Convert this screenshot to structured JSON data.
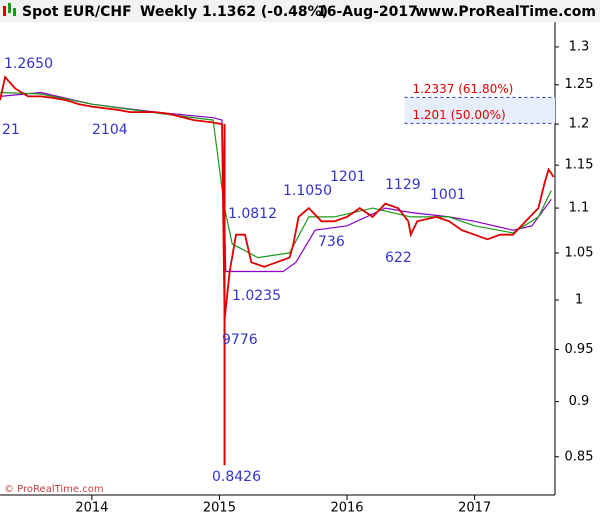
{
  "chart_data": {
    "type": "line",
    "title": "Spot EUR/CHF",
    "period": "Weekly",
    "last": "1.1362 (-0.48%)",
    "date": "16-Aug-2017",
    "site": "www.ProRealTime.com",
    "copyright": "© ProRealTime.com",
    "log_scale": true,
    "xlim": [
      2013.28,
      2017.63
    ],
    "xticks": [
      2014,
      2015,
      2016,
      2017
    ],
    "ylim": [
      0.817,
      1.334
    ],
    "yticks": [
      0.85,
      0.9,
      0.95,
      1,
      1.05,
      1.1,
      1.15,
      1.2,
      1.25,
      1.3
    ],
    "price": {
      "color": "#e00000",
      "x": [
        2013.28,
        2013.32,
        2013.4,
        2013.5,
        2013.6,
        2013.7,
        2013.8,
        2013.9,
        2014.0,
        2014.2,
        2014.3,
        2014.5,
        2014.6,
        2014.8,
        2014.95,
        2015.02,
        2015.04,
        2015.08,
        2015.13,
        2015.2,
        2015.25,
        2015.35,
        2015.45,
        2015.55,
        2015.58,
        2015.62,
        2015.7,
        2015.8,
        2015.9,
        2016.0,
        2016.1,
        2016.2,
        2016.3,
        2016.4,
        2016.48,
        2016.5,
        2016.55,
        2016.7,
        2016.8,
        2016.9,
        2017.0,
        2017.1,
        2017.2,
        2017.3,
        2017.4,
        2017.5,
        2017.55,
        2017.58,
        2017.62
      ],
      "values": [
        1.23,
        1.26,
        1.245,
        1.235,
        1.235,
        1.233,
        1.23,
        1.225,
        1.222,
        1.218,
        1.215,
        1.215,
        1.213,
        1.205,
        1.202,
        1.2,
        0.98,
        1.03,
        1.07,
        1.07,
        1.04,
        1.035,
        1.04,
        1.045,
        1.06,
        1.09,
        1.1,
        1.085,
        1.085,
        1.09,
        1.1,
        1.09,
        1.105,
        1.1,
        1.085,
        1.07,
        1.085,
        1.09,
        1.085,
        1.075,
        1.07,
        1.065,
        1.07,
        1.07,
        1.085,
        1.1,
        1.13,
        1.145,
        1.136
      ]
    },
    "spike": {
      "color": "#e00000",
      "x": 2015.04,
      "high": 1.2,
      "low": 0.8426
    },
    "averages": [
      {
        "color": "#8b00c8",
        "x": [
          2013.28,
          2013.6,
          2014.0,
          2014.5,
          2014.95,
          2015.02,
          2015.05,
          2015.5,
          2015.6,
          2015.75,
          2016.0,
          2016.3,
          2016.5,
          2016.8,
          2017.0,
          2017.3,
          2017.45,
          2017.6
        ],
        "values": [
          1.235,
          1.24,
          1.225,
          1.215,
          1.208,
          1.205,
          1.03,
          1.03,
          1.04,
          1.075,
          1.08,
          1.1,
          1.095,
          1.09,
          1.085,
          1.075,
          1.08,
          1.11
        ]
      },
      {
        "color": "#1a9a1a",
        "x": [
          2013.28,
          2013.6,
          2014.0,
          2014.5,
          2014.95,
          2015.04,
          2015.1,
          2015.3,
          2015.55,
          2015.7,
          2015.9,
          2016.2,
          2016.5,
          2016.8,
          2017.0,
          2017.3,
          2017.5,
          2017.6
        ],
        "values": [
          1.24,
          1.238,
          1.225,
          1.214,
          1.205,
          1.1,
          1.06,
          1.045,
          1.05,
          1.09,
          1.09,
          1.1,
          1.09,
          1.09,
          1.08,
          1.072,
          1.09,
          1.12
        ]
      }
    ],
    "fib_start": 2016.45,
    "fib_levels": [
      {
        "value": 1.2337,
        "label": "1.2337 (61.80%)"
      },
      {
        "value": 1.201,
        "label": "1.201 (50.00%)"
      }
    ],
    "annotations": [
      "1.2650",
      "21",
      "2104",
      "1.0812",
      "1.1050",
      "1201",
      "1129",
      "1001",
      "736",
      "622",
      "1.0235",
      "9776",
      "0.8426"
    ]
  }
}
